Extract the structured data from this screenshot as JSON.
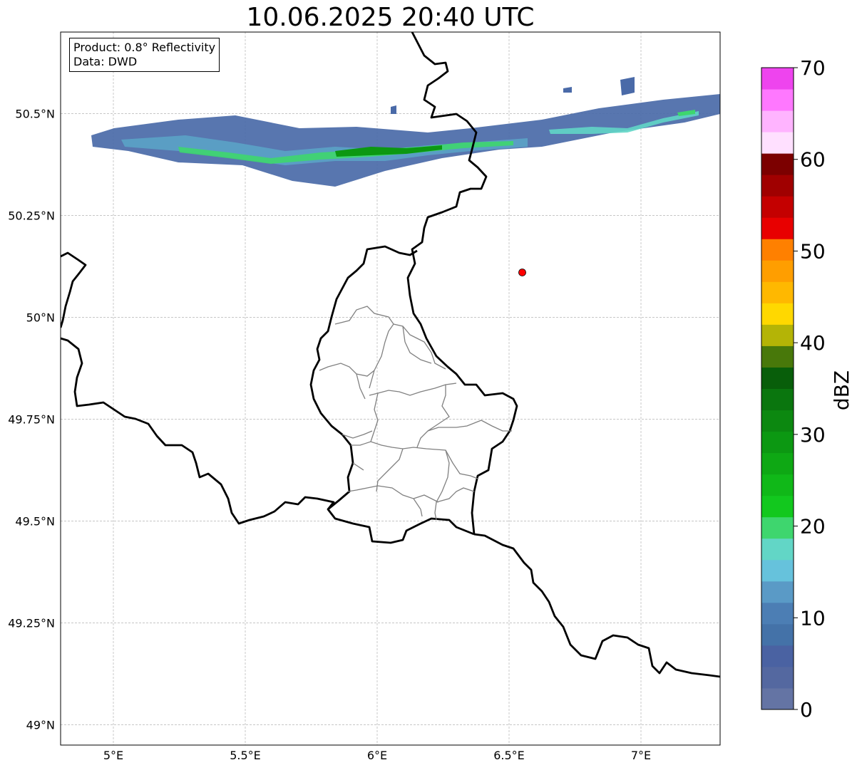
{
  "title": "10.06.2025 20:40 UTC",
  "info": {
    "product": "Product: 0.8° Reflectivity",
    "data": "Data: DWD"
  },
  "axes": {
    "lon_ticks": [
      {
        "value": 5.0,
        "label": "5°E"
      },
      {
        "value": 5.5,
        "label": "5.5°E"
      },
      {
        "value": 6.0,
        "label": "6°E"
      },
      {
        "value": 6.5,
        "label": "6.5°E"
      },
      {
        "value": 7.0,
        "label": "7°E"
      }
    ],
    "lat_ticks": [
      {
        "value": 50.5,
        "label": "50.5°N"
      },
      {
        "value": 50.25,
        "label": "50.25°N"
      },
      {
        "value": 50.0,
        "label": "50°N"
      },
      {
        "value": 49.75,
        "label": "49.75°N"
      },
      {
        "value": 49.5,
        "label": "49.5°N"
      },
      {
        "value": 49.25,
        "label": "49.25°N"
      },
      {
        "value": 49.0,
        "label": "49°N"
      }
    ],
    "lon_range": [
      4.8,
      7.3
    ],
    "lat_range": [
      48.95,
      50.7
    ],
    "grid": true
  },
  "site_marker": {
    "lon": 6.55,
    "lat": 50.11,
    "color": "#ff0000"
  },
  "colorbar": {
    "label": "dBZ",
    "min": 0,
    "max": 70,
    "tick_labels": [
      "0",
      "10",
      "20",
      "30",
      "40",
      "50",
      "60",
      "70"
    ],
    "colors": [
      "#6474a4",
      "#5468a0",
      "#4a62a2",
      "#4472a8",
      "#4c7eb4",
      "#5a9ac6",
      "#66c2dc",
      "#62d6c6",
      "#3ed66e",
      "#12c81e",
      "#10b818",
      "#0ea814",
      "#0c9812",
      "#0c8810",
      "#0a760e",
      "#085e0a",
      "#48780a",
      "#b4b406",
      "#ffd800",
      "#ffb800",
      "#ff9e00",
      "#ff8000",
      "#e80000",
      "#c40000",
      "#a00000",
      "#7c0000",
      "#ffe0ff",
      "#ffb4ff",
      "#ff78ff",
      "#ee44ee"
    ]
  },
  "colors": {
    "border": "#000000",
    "admin_border": "#808080",
    "grid": "#b4b4b4"
  }
}
